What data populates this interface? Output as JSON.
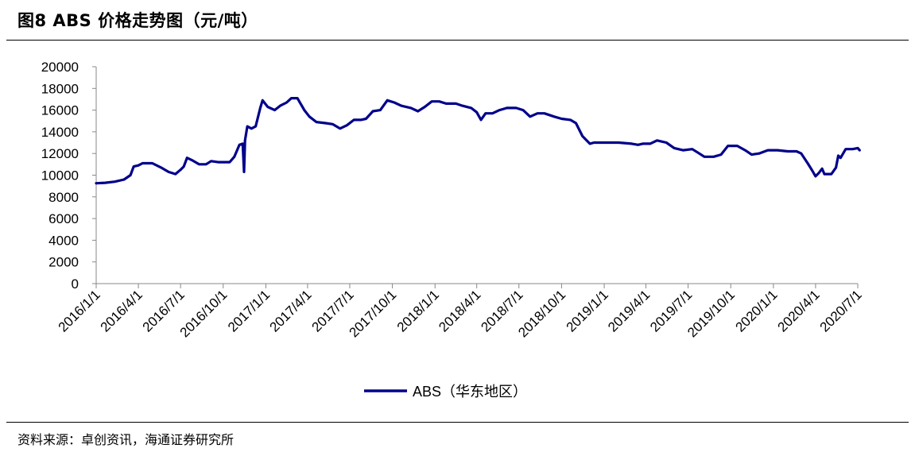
{
  "header": {
    "title": "图8   ABS 价格走势图（元/吨）"
  },
  "footer": {
    "source": "资料来源：卓创资讯，海通证券研究所"
  },
  "chart_data": {
    "type": "line",
    "title": "",
    "xlabel": "",
    "ylabel": "",
    "ylim": [
      0,
      20000
    ],
    "yticks": [
      0,
      2000,
      4000,
      6000,
      8000,
      10000,
      12000,
      14000,
      16000,
      18000,
      20000
    ],
    "xticks": [
      "2016/1/1",
      "2016/4/1",
      "2016/7/1",
      "2016/10/1",
      "2017/1/1",
      "2017/4/1",
      "2017/7/1",
      "2017/10/1",
      "2018/1/1",
      "2018/4/1",
      "2018/7/1",
      "2018/10/1",
      "2019/1/1",
      "2019/4/1",
      "2019/7/1",
      "2019/10/1",
      "2020/1/1",
      "2020/4/1",
      "2020/7/1"
    ],
    "grid": false,
    "legend_position": "bottom-center",
    "line_color": "#00008B",
    "series": [
      {
        "name": "ABS（华东地区）",
        "points": [
          [
            "2016/1/1",
            9250
          ],
          [
            "2016/1/20",
            9300
          ],
          [
            "2016/2/10",
            9400
          ],
          [
            "2016/3/1",
            9600
          ],
          [
            "2016/3/15",
            10000
          ],
          [
            "2016/3/22",
            10800
          ],
          [
            "2016/4/1",
            10900
          ],
          [
            "2016/4/10",
            11100
          ],
          [
            "2016/5/1",
            11100
          ],
          [
            "2016/5/20",
            10700
          ],
          [
            "2016/6/5",
            10300
          ],
          [
            "2016/6/20",
            10100
          ],
          [
            "2016/7/1",
            10500
          ],
          [
            "2016/7/8",
            10800
          ],
          [
            "2016/7/15",
            11600
          ],
          [
            "2016/7/25",
            11400
          ],
          [
            "2016/8/10",
            11000
          ],
          [
            "2016/8/25",
            11000
          ],
          [
            "2016/9/5",
            11300
          ],
          [
            "2016/9/20",
            11200
          ],
          [
            "2016/10/1",
            11200
          ],
          [
            "2016/10/15",
            11200
          ],
          [
            "2016/10/25",
            11700
          ],
          [
            "2016/11/5",
            12800
          ],
          [
            "2016/11/12",
            12900
          ],
          [
            "2016/11/15",
            10300
          ],
          [
            "2016/11/17",
            13200
          ],
          [
            "2016/11/22",
            14500
          ],
          [
            "2016/12/1",
            14300
          ],
          [
            "2016/12/10",
            14500
          ],
          [
            "2016/12/20",
            16200
          ],
          [
            "2016/12/25",
            16900
          ],
          [
            "2017/1/5",
            16300
          ],
          [
            "2017/1/20",
            16000
          ],
          [
            "2017/2/1",
            16400
          ],
          [
            "2017/2/15",
            16700
          ],
          [
            "2017/2/25",
            17100
          ],
          [
            "2017/3/10",
            17100
          ],
          [
            "2017/3/25",
            16000
          ],
          [
            "2017/4/5",
            15400
          ],
          [
            "2017/4/20",
            14900
          ],
          [
            "2017/5/10",
            14800
          ],
          [
            "2017/5/25",
            14700
          ],
          [
            "2017/6/10",
            14300
          ],
          [
            "2017/6/25",
            14600
          ],
          [
            "2017/7/10",
            15100
          ],
          [
            "2017/7/25",
            15100
          ],
          [
            "2017/8/5",
            15200
          ],
          [
            "2017/8/20",
            15900
          ],
          [
            "2017/9/5",
            16000
          ],
          [
            "2017/9/20",
            16900
          ],
          [
            "2017/10/5",
            16700
          ],
          [
            "2017/10/20",
            16400
          ],
          [
            "2017/11/10",
            16200
          ],
          [
            "2017/11/25",
            15900
          ],
          [
            "2017/12/10",
            16300
          ],
          [
            "2017/12/25",
            16800
          ],
          [
            "2018/1/10",
            16800
          ],
          [
            "2018/1/25",
            16600
          ],
          [
            "2018/2/15",
            16600
          ],
          [
            "2018/3/1",
            16400
          ],
          [
            "2018/3/20",
            16200
          ],
          [
            "2018/4/1",
            15800
          ],
          [
            "2018/4/10",
            15100
          ],
          [
            "2018/4/20",
            15700
          ],
          [
            "2018/5/5",
            15700
          ],
          [
            "2018/5/20",
            16000
          ],
          [
            "2018/6/5",
            16200
          ],
          [
            "2018/6/25",
            16200
          ],
          [
            "2018/7/10",
            16000
          ],
          [
            "2018/7/25",
            15400
          ],
          [
            "2018/8/10",
            15700
          ],
          [
            "2018/8/25",
            15700
          ],
          [
            "2018/9/15",
            15400
          ],
          [
            "2018/10/1",
            15200
          ],
          [
            "2018/10/20",
            15100
          ],
          [
            "2018/11/1",
            14800
          ],
          [
            "2018/11/15",
            13600
          ],
          [
            "2018/12/1",
            12900
          ],
          [
            "2018/12/10",
            13000
          ],
          [
            "2019/1/1",
            13000
          ],
          [
            "2019/2/1",
            13000
          ],
          [
            "2019/3/1",
            12900
          ],
          [
            "2019/3/15",
            12800
          ],
          [
            "2019/3/25",
            12900
          ],
          [
            "2019/4/10",
            12900
          ],
          [
            "2019/4/25",
            13200
          ],
          [
            "2019/5/15",
            13000
          ],
          [
            "2019/6/1",
            12500
          ],
          [
            "2019/6/20",
            12300
          ],
          [
            "2019/7/10",
            12400
          ],
          [
            "2019/7/25",
            12000
          ],
          [
            "2019/8/5",
            11700
          ],
          [
            "2019/8/25",
            11700
          ],
          [
            "2019/9/10",
            11900
          ],
          [
            "2019/9/25",
            12700
          ],
          [
            "2019/10/15",
            12700
          ],
          [
            "2019/11/1",
            12300
          ],
          [
            "2019/11/15",
            11900
          ],
          [
            "2019/12/1",
            12000
          ],
          [
            "2019/12/20",
            12300
          ],
          [
            "2020/1/10",
            12300
          ],
          [
            "2020/2/1",
            12200
          ],
          [
            "2020/2/20",
            12200
          ],
          [
            "2020/3/1",
            12000
          ],
          [
            "2020/3/15",
            11100
          ],
          [
            "2020/3/25",
            10400
          ],
          [
            "2020/4/1",
            9900
          ],
          [
            "2020/4/8",
            10200
          ],
          [
            "2020/4/15",
            10600
          ],
          [
            "2020/4/20",
            10100
          ],
          [
            "2020/5/5",
            10100
          ],
          [
            "2020/5/15",
            10700
          ],
          [
            "2020/5/20",
            11800
          ],
          [
            "2020/5/25",
            11600
          ],
          [
            "2020/6/5",
            12400
          ],
          [
            "2020/6/20",
            12400
          ],
          [
            "2020/7/1",
            12500
          ],
          [
            "2020/7/5",
            12300
          ]
        ]
      }
    ]
  }
}
